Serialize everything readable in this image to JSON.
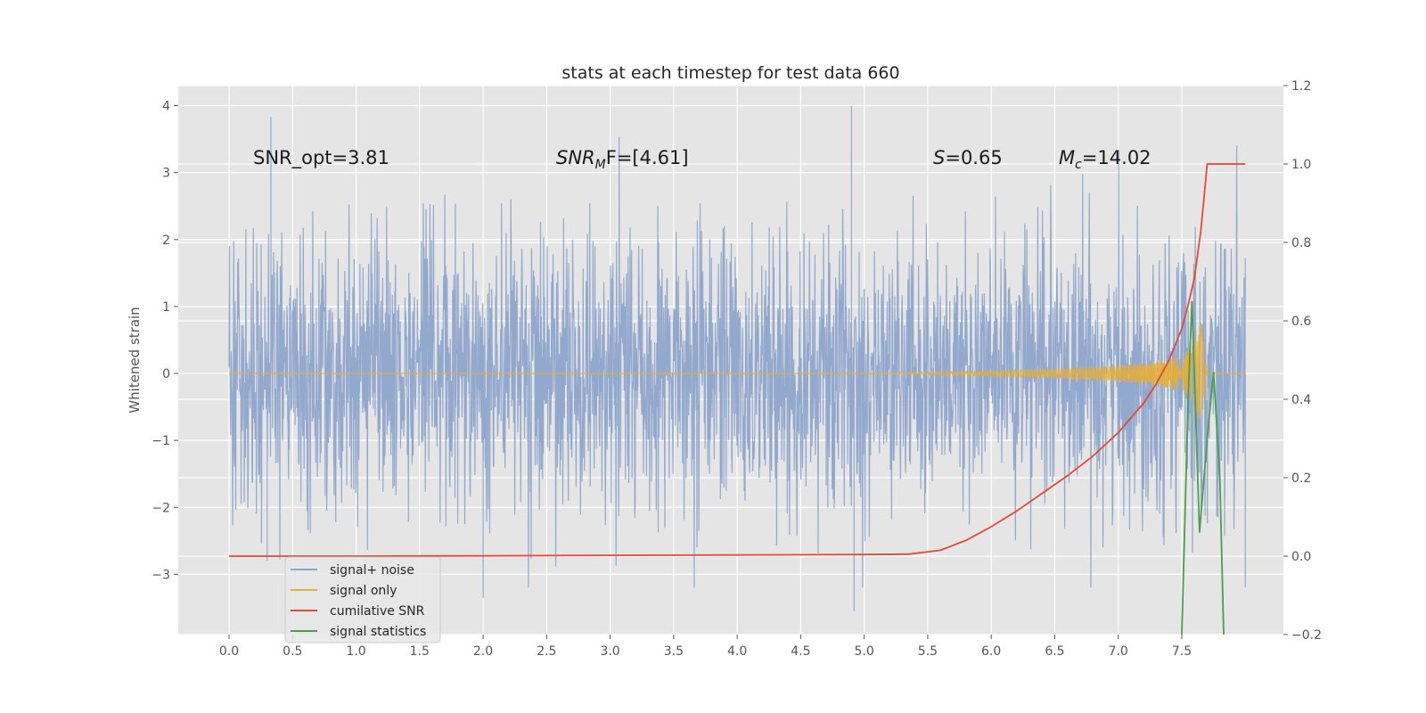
{
  "chart_data": {
    "type": "line",
    "title": "stats at each timestep for test data 660",
    "ylabel": "Whitened strain",
    "xlabel": "",
    "xlim": [
      -0.4,
      8.3
    ],
    "ylim": [
      -3.9,
      4.3
    ],
    "y2lim": [
      -0.2,
      1.2
    ],
    "x_ticks": [
      "0.0",
      "0.5",
      "1.0",
      "1.5",
      "2.0",
      "2.5",
      "3.0",
      "3.5",
      "4.0",
      "4.5",
      "5.0",
      "5.5",
      "6.0",
      "6.5",
      "7.0",
      "7.5"
    ],
    "y_ticks": [
      "4",
      "3",
      "2",
      "1",
      "0",
      "−1",
      "−2",
      "−3"
    ],
    "y2_ticks": [
      "1.2",
      "1.0",
      "0.8",
      "0.6",
      "0.4",
      "0.2",
      "0.0",
      "−0.2"
    ],
    "grid": true,
    "legend_position": "lower-left",
    "annotations": {
      "snr_opt": "SNR_opt=3.81",
      "snr_mf_main": "SNR",
      "snr_mf_sub": "M",
      "snr_mf_rest": "F=[4.61]",
      "s_main": "S",
      "s_rest": "=0.65",
      "mc_main": "M",
      "mc_sub": "c",
      "mc_rest": "=14.02"
    },
    "series": [
      {
        "name": "signal+ noise",
        "color": "#8da5cb",
        "axis": "left",
        "style": "dense noise between approximately -3.5 and 4.0",
        "x_range": [
          0.0,
          8.0
        ],
        "sample_peaks": [
          [
            0.33,
            3.83
          ],
          [
            4.9,
            4.0
          ],
          [
            2.0,
            -3.35
          ],
          [
            4.92,
            -3.55
          ],
          [
            8.0,
            -3.2
          ],
          [
            0.3,
            -2.8
          ]
        ]
      },
      {
        "name": "signal only",
        "color": "#e5ae38",
        "axis": "left",
        "style": "chirp growing to about ±0.8 near x=7.65",
        "x": [
          0.0,
          5.0,
          5.5,
          6.0,
          6.5,
          7.0,
          7.3,
          7.5,
          7.6,
          7.65,
          7.7,
          8.0
        ],
        "envelope": [
          0.0,
          0.0,
          0.02,
          0.04,
          0.07,
          0.12,
          0.18,
          0.28,
          0.45,
          0.8,
          0.0,
          0.0
        ]
      },
      {
        "name": "cumilative SNR",
        "color": "#e24a33",
        "axis": "right",
        "x": [
          0.0,
          1.0,
          2.0,
          3.0,
          4.0,
          5.0,
          5.35,
          5.6,
          5.8,
          6.0,
          6.2,
          6.4,
          6.6,
          6.8,
          7.0,
          7.2,
          7.3,
          7.4,
          7.5,
          7.55,
          7.6,
          7.65,
          7.68,
          7.7,
          8.0
        ],
        "y": [
          0.0,
          0.0,
          0.001,
          0.002,
          0.003,
          0.004,
          0.005,
          0.015,
          0.04,
          0.075,
          0.115,
          0.16,
          0.205,
          0.255,
          0.315,
          0.39,
          0.44,
          0.5,
          0.58,
          0.64,
          0.71,
          0.83,
          0.93,
          1.0,
          1.0
        ]
      },
      {
        "name": "signal statistics",
        "color": "#4a9e4d",
        "axis": "right",
        "x": [
          7.5,
          7.55,
          7.58,
          7.64,
          7.7,
          7.75,
          7.8,
          7.83
        ],
        "y": [
          -0.2,
          0.4,
          0.65,
          0.06,
          0.3,
          0.47,
          0.2,
          -0.2
        ]
      }
    ]
  }
}
